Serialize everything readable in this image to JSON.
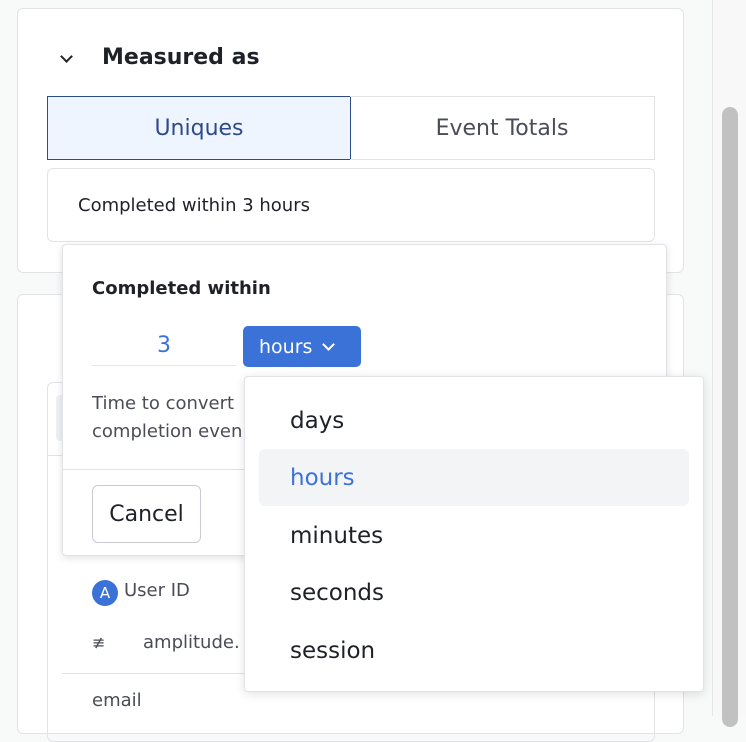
{
  "measured": {
    "title": "Measured as",
    "options": [
      {
        "label": "Uniques",
        "selected": true
      },
      {
        "label": "Event Totals",
        "selected": false
      }
    ],
    "summary": "Completed within 3 hours"
  },
  "popover": {
    "title": "Completed within",
    "value": "3",
    "unit": "hours",
    "help_line1": "Time to convert",
    "help_line2": "completion even",
    "cancel": "Cancel"
  },
  "unit_menu": {
    "items": [
      "days",
      "hours",
      "minutes",
      "seconds",
      "session"
    ],
    "selected": "hours"
  },
  "background": {
    "user_id": "User ID",
    "operator": "≢",
    "property": "amplitude.",
    "email": "email"
  },
  "colors": {
    "accent": "#3a72d8",
    "selected_bg": "#eef5fe"
  }
}
